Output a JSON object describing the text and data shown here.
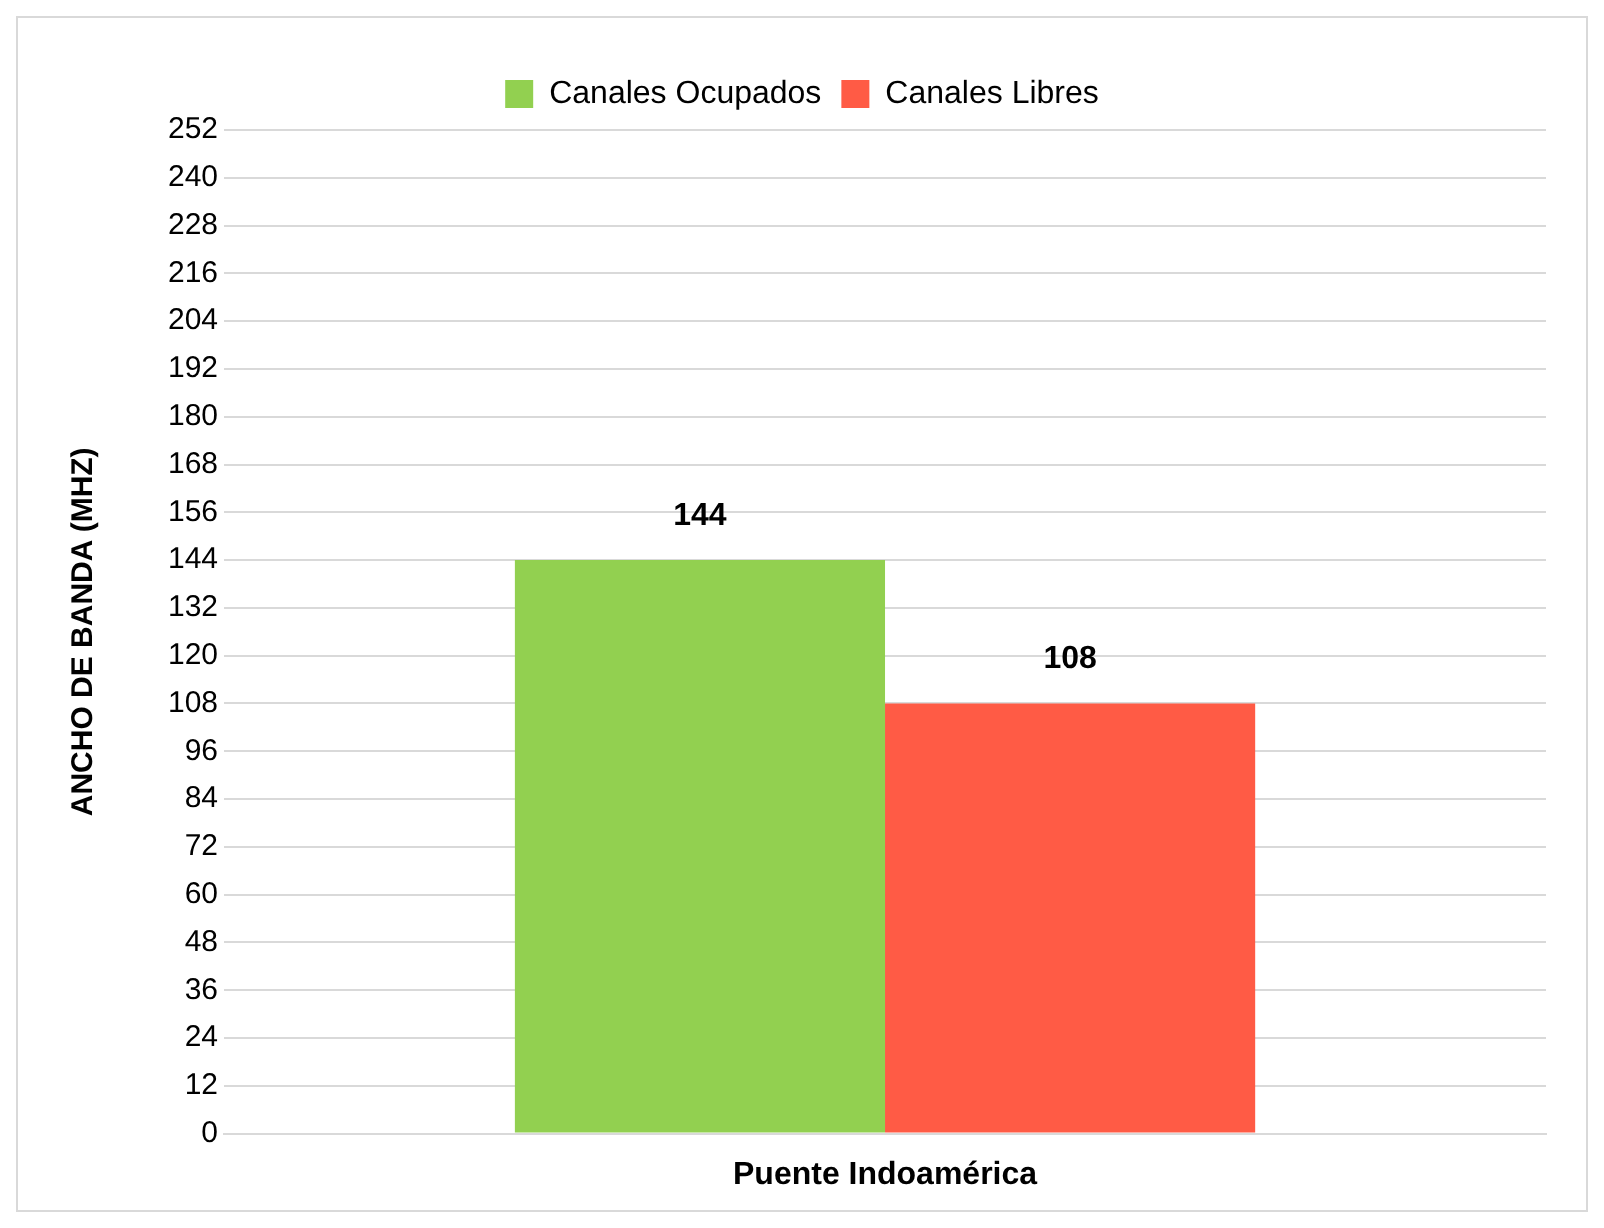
{
  "chart_data": {
    "type": "bar",
    "ylabel": "ANCHO DE BANDA (MHZ)",
    "categories": [
      "Puente Indoamérica"
    ],
    "series": [
      {
        "name": "Canales Ocupados",
        "color": "#92d050",
        "values": [
          144
        ]
      },
      {
        "name": "Canales Libres",
        "color": "#ff5b45",
        "values": [
          108
        ]
      }
    ],
    "ylim": [
      0,
      252
    ],
    "yticks": [
      0,
      12,
      24,
      36,
      48,
      60,
      72,
      84,
      96,
      108,
      120,
      132,
      144,
      156,
      168,
      180,
      192,
      204,
      216,
      228,
      240,
      252
    ],
    "grid": "y",
    "legend": "top",
    "data_labels": true
  }
}
